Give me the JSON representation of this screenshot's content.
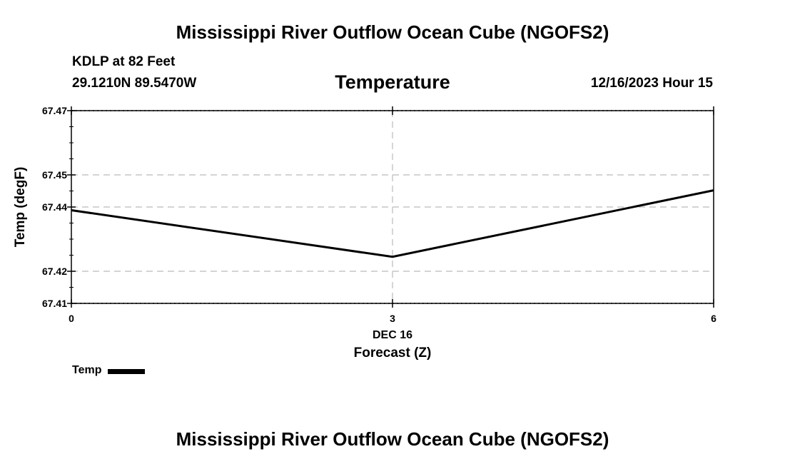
{
  "header": {
    "main_title": "Mississippi River Outflow Ocean Cube (NGOFS2)",
    "station": "KDLP at 82 Feet",
    "coords": "29.1210N  89.5470W",
    "chart_title": "Temperature",
    "date_hour": "12/16/2023 Hour 15"
  },
  "footer": {
    "title": "Mississippi River Outflow Ocean Cube (NGOFS2)"
  },
  "legend": {
    "label": "Temp"
  },
  "chart_data": {
    "type": "line",
    "title": "Temperature",
    "xlabel": "Forecast (Z)",
    "xlabel_sub": "DEC 16",
    "ylabel": "Temp (degF)",
    "xlim": [
      0,
      6
    ],
    "ylim": [
      67.41,
      67.47
    ],
    "x_ticks": [
      0,
      3,
      6
    ],
    "x_tick_labels": [
      "0",
      "3",
      "6"
    ],
    "y_ticks": [
      67.41,
      67.42,
      67.44,
      67.45,
      67.47
    ],
    "y_tick_labels": [
      "67.41",
      "67.42",
      "67.44",
      "67.45",
      "67.47"
    ],
    "grid": true,
    "series": [
      {
        "name": "Temp",
        "x": [
          0,
          3,
          6
        ],
        "values": [
          67.439,
          67.4245,
          67.4452
        ]
      }
    ],
    "line_color": "#000000"
  }
}
